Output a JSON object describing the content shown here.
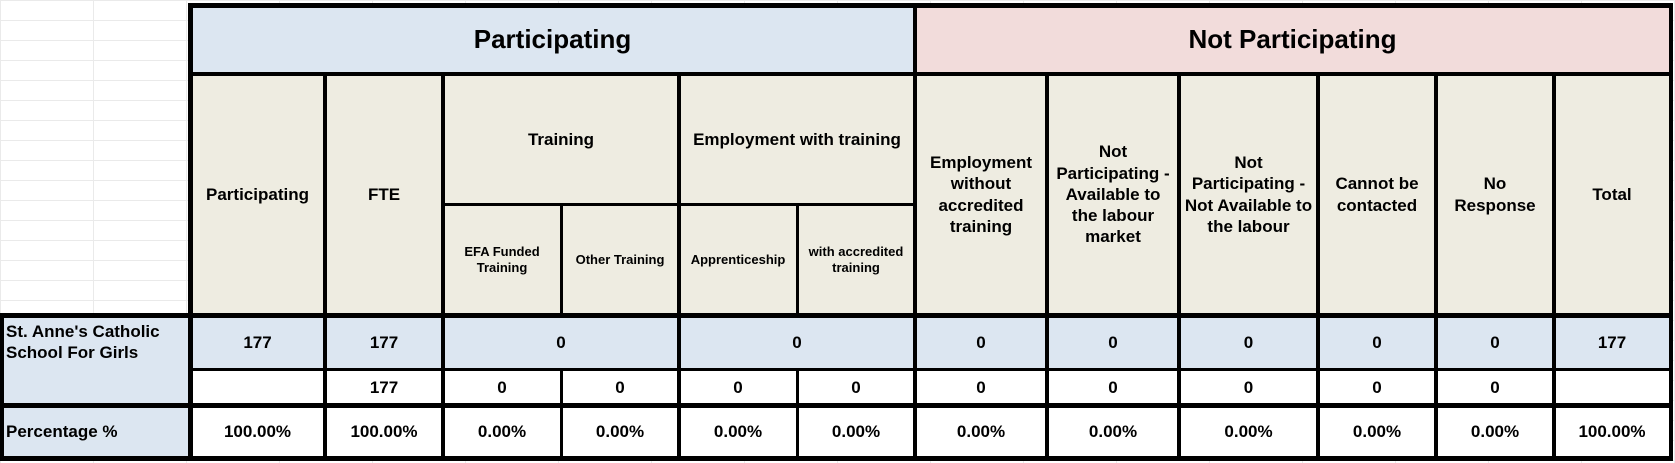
{
  "groups": {
    "participating": "Participating",
    "not_participating": "Not Participating"
  },
  "headers": {
    "participating": "Participating",
    "fte": "FTE",
    "training": "Training",
    "employment_with_training": "Employment with training",
    "efa_funded": "EFA Funded Training",
    "other_training": "Other Training",
    "apprenticeship": "Apprenticeship",
    "with_accredited": "with accredited training",
    "employment_without": "Employment without accredited training",
    "np_available": "Not Participating - Available to the labour market",
    "np_not_available": "Not Participating - Not Available to the labour",
    "cannot_contact": "Cannot be contacted",
    "no_response": "No Response",
    "total": "Total"
  },
  "school": {
    "name": "St. Anne's Catholic School For Girls",
    "row1": {
      "participating": "177",
      "fte": "177",
      "training": "0",
      "employment_with_training": "0",
      "employment_without": "0",
      "np_available": "0",
      "np_not_available": "0",
      "cannot_contact": "0",
      "no_response": "0",
      "total": "177"
    },
    "row2": {
      "fte": "177",
      "efa_funded": "0",
      "other_training": "0",
      "apprenticeship": "0",
      "with_accredited": "0",
      "employment_without": "0",
      "np_available": "0",
      "np_not_available": "0",
      "cannot_contact": "0",
      "no_response": "0"
    }
  },
  "percentage": {
    "label": "Percentage %",
    "values": [
      "100.00%",
      "100.00%",
      "0.00%",
      "0.00%",
      "0.00%",
      "0.00%",
      "0.00%",
      "0.00%",
      "0.00%",
      "0.00%",
      "0.00%",
      "100.00%"
    ]
  },
  "colors": {
    "blue": "#dce6f1",
    "pink": "#f2dcdb",
    "beige": "#eeece1",
    "border": "#000000"
  }
}
